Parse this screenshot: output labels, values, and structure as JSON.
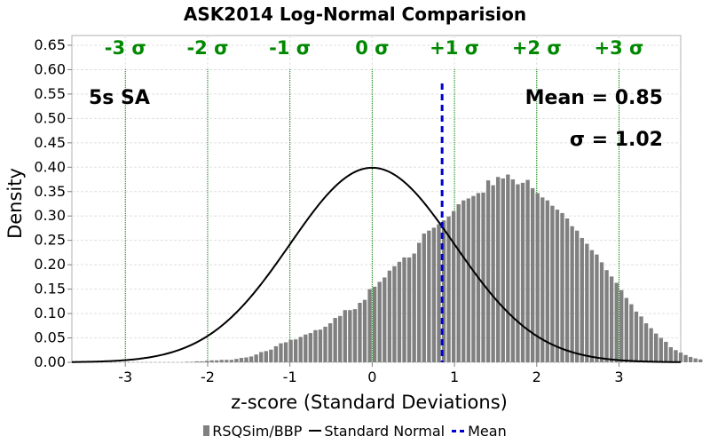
{
  "chart_data": {
    "type": "bar",
    "title": "ASK2014 Log-Normal Comparision",
    "xlabel": "z-score (Standard Deviations)",
    "ylabel": "Density",
    "xlim": [
      -3.65,
      3.75
    ],
    "ylim": [
      0,
      0.67
    ],
    "x_ticks": [
      "-3",
      "-2",
      "-1",
      "0",
      "1",
      "2",
      "3"
    ],
    "y_ticks": [
      "0.00",
      "0.05",
      "0.10",
      "0.15",
      "0.20",
      "0.25",
      "0.30",
      "0.35",
      "0.40",
      "0.45",
      "0.50",
      "0.55",
      "0.60",
      "0.65"
    ],
    "grid": true,
    "legend_position": "bottom",
    "bin_width": 0.06,
    "bin_start": -2.28,
    "series": [
      {
        "name": "RSQSim/BBP",
        "kind": "histogram",
        "color": "#808080",
        "values": [
          0.001,
          0.001,
          0.002,
          0.002,
          0.003,
          0.004,
          0.004,
          0.005,
          0.005,
          0.005,
          0.007,
          0.009,
          0.01,
          0.012,
          0.016,
          0.021,
          0.023,
          0.026,
          0.033,
          0.039,
          0.041,
          0.046,
          0.047,
          0.052,
          0.057,
          0.06,
          0.066,
          0.067,
          0.073,
          0.08,
          0.091,
          0.095,
          0.107,
          0.107,
          0.109,
          0.122,
          0.128,
          0.15,
          0.155,
          0.165,
          0.174,
          0.188,
          0.197,
          0.206,
          0.215,
          0.215,
          0.223,
          0.245,
          0.264,
          0.27,
          0.276,
          0.283,
          0.291,
          0.299,
          0.31,
          0.324,
          0.332,
          0.336,
          0.341,
          0.347,
          0.348,
          0.373,
          0.363,
          0.38,
          0.377,
          0.385,
          0.375,
          0.365,
          0.368,
          0.374,
          0.357,
          0.347,
          0.338,
          0.332,
          0.321,
          0.313,
          0.306,
          0.295,
          0.279,
          0.27,
          0.255,
          0.243,
          0.23,
          0.221,
          0.205,
          0.189,
          0.176,
          0.163,
          0.148,
          0.132,
          0.119,
          0.104,
          0.094,
          0.08,
          0.07,
          0.059,
          0.05,
          0.042,
          0.031,
          0.025,
          0.02,
          0.015,
          0.011,
          0.008,
          0.006
        ]
      },
      {
        "name": "Standard Normal",
        "kind": "line",
        "color": "#000000",
        "function": "standard normal pdf"
      },
      {
        "name": "Mean",
        "kind": "vline",
        "color": "#0000cc",
        "x": 0.85
      }
    ],
    "sigma_lines": [
      {
        "x": -3,
        "label": "-3 σ"
      },
      {
        "x": -2,
        "label": "-2 σ"
      },
      {
        "x": -1,
        "label": "-1 σ"
      },
      {
        "x": 0,
        "label": "0 σ"
      },
      {
        "x": 1,
        "label": "+1 σ"
      },
      {
        "x": 2,
        "label": "+2 σ"
      },
      {
        "x": 3,
        "label": "+3 σ"
      }
    ],
    "annotations": {
      "period": "5s SA",
      "mean": "Mean = 0.85",
      "sigma": "σ = 1.02"
    },
    "colors": {
      "sigma": "#008800",
      "grid": "#e0e0e0",
      "axis": "#808080"
    }
  },
  "legend": [
    {
      "label": "RSQSim/BBP",
      "swatch": "bar"
    },
    {
      "label": "Standard Normal",
      "swatch": "line"
    },
    {
      "label": "Mean",
      "swatch": "dash"
    }
  ]
}
